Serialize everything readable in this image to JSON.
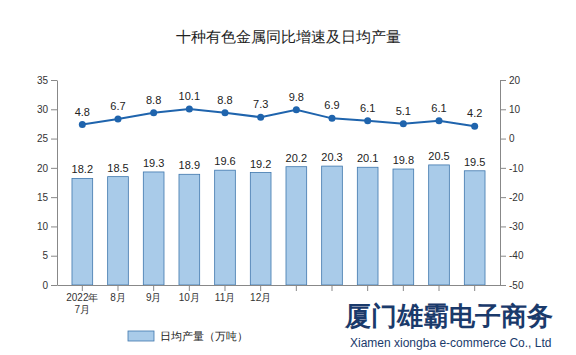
{
  "chart_data": {
    "type": "bar",
    "title": "十种有色金属同比增速及日均产量",
    "categories": [
      "2022年7月",
      "8月",
      "9月",
      "10月",
      "11月",
      "12月",
      null,
      null,
      null,
      null,
      null,
      null
    ],
    "series": [
      {
        "name": "日均产量（万吨）",
        "type": "bar",
        "color": "#a9cbe9",
        "values": [
          18.2,
          18.5,
          19.3,
          18.9,
          19.6,
          19.2,
          20.2,
          20.3,
          20.1,
          19.8,
          20.5,
          19.5
        ]
      },
      {
        "type": "line",
        "axis": "y2",
        "color": "#1f64ad",
        "marker": "circle",
        "values": [
          4.8,
          6.7,
          8.8,
          10.1,
          8.8,
          7.3,
          9.8,
          6.9,
          6.1,
          5.1,
          6.1,
          4.2
        ]
      }
    ],
    "ylim": [
      0,
      35
    ],
    "yticks": [
      0,
      5,
      10,
      15,
      20,
      25,
      30,
      35
    ],
    "y2lim": [
      -50,
      20
    ],
    "y2ticks": [
      -50,
      -40,
      -30,
      -20,
      -10,
      0,
      10,
      20
    ],
    "data_labels": true,
    "grid": false,
    "legend": "bottom",
    "annotations": [
      "厦门雄霸电子商务",
      "Xiamen xiongba e-commerce Co., Ltd"
    ]
  }
}
